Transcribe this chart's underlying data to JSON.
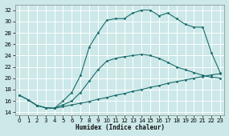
{
  "xlabel": "Humidex (Indice chaleur)",
  "bg_color": "#cce8e8",
  "grid_color": "#b0d0d0",
  "line_color": "#1a6b6b",
  "xlim": [
    -0.5,
    23.5
  ],
  "ylim": [
    13.5,
    33
  ],
  "xticks": [
    0,
    1,
    2,
    3,
    4,
    5,
    6,
    7,
    8,
    9,
    10,
    11,
    12,
    13,
    14,
    15,
    16,
    17,
    18,
    19,
    20,
    21,
    22,
    23
  ],
  "yticks": [
    14,
    16,
    18,
    20,
    22,
    24,
    26,
    28,
    30,
    32
  ],
  "line1_x": [
    0,
    1,
    2,
    3,
    4,
    5,
    6,
    7,
    8,
    9,
    10,
    11,
    12,
    13,
    14,
    15,
    16,
    17,
    18,
    19,
    20,
    21,
    22,
    23
  ],
  "line1_y": [
    17.0,
    16.2,
    15.2,
    14.8,
    14.7,
    15.0,
    15.3,
    15.6,
    15.9,
    16.3,
    16.6,
    17.0,
    17.3,
    17.7,
    18.0,
    18.4,
    18.7,
    19.1,
    19.4,
    19.7,
    20.0,
    20.3,
    20.6,
    20.8
  ],
  "line2_x": [
    0,
    1,
    2,
    3,
    4,
    5,
    6,
    7,
    8,
    9,
    10,
    11,
    12,
    13,
    14,
    15,
    16,
    17,
    18,
    19,
    20,
    21,
    22,
    23
  ],
  "line2_y": [
    17.0,
    16.2,
    15.2,
    14.8,
    14.7,
    15.3,
    16.0,
    17.5,
    19.5,
    21.5,
    23.0,
    23.5,
    23.8,
    24.0,
    24.2,
    24.0,
    23.5,
    22.8,
    22.0,
    21.5,
    21.0,
    20.5,
    20.2,
    20.0
  ],
  "line3_x": [
    1,
    2,
    3,
    4,
    5,
    6,
    7,
    8,
    9,
    10,
    11,
    12,
    13,
    14,
    15,
    16,
    17,
    18,
    19,
    20,
    21,
    22,
    23
  ],
  "line3_y": [
    16.2,
    15.2,
    14.8,
    14.7,
    16.0,
    17.5,
    20.5,
    25.5,
    28.0,
    30.2,
    30.5,
    30.5,
    31.5,
    32.0,
    32.0,
    31.0,
    31.5,
    30.5,
    29.5,
    29.0,
    29.0,
    24.5,
    21.0
  ]
}
